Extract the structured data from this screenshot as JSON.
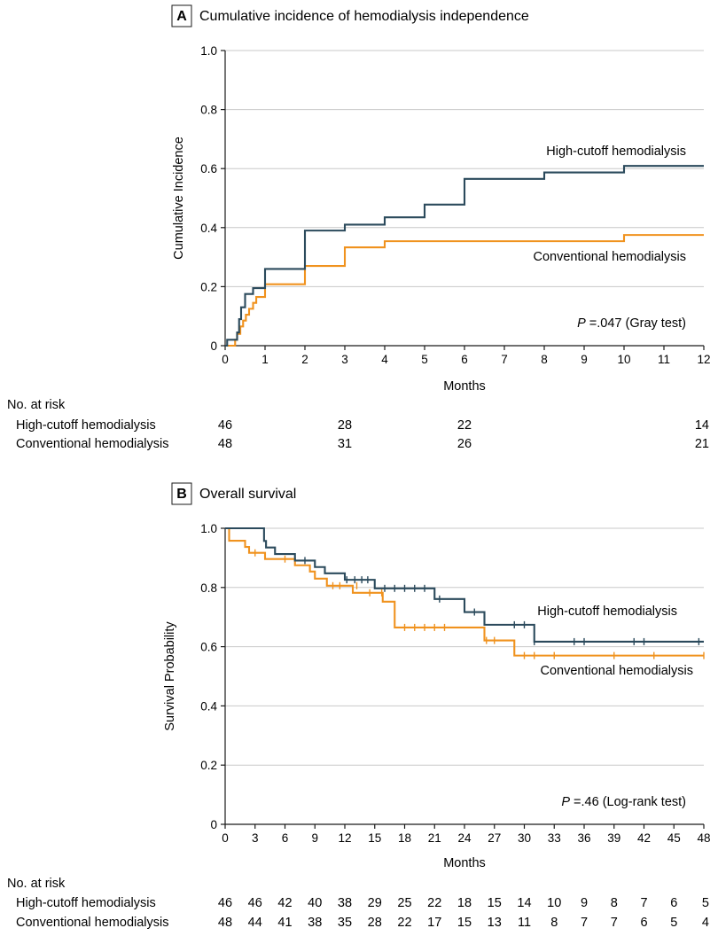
{
  "chart_data": [
    {
      "type": "step-line",
      "panel_letter": "A",
      "title": "Cumulative incidence of hemodialysis independence",
      "ylabel": "Cumulative Incidence",
      "xlabel": "Months",
      "xlim": [
        0,
        12
      ],
      "ylim": [
        0,
        1
      ],
      "x_ticks": [
        0,
        1,
        2,
        3,
        4,
        5,
        6,
        7,
        8,
        9,
        10,
        11,
        12
      ],
      "x_tick_labels": [
        "0",
        "1",
        "2",
        "3",
        "4",
        "5",
        "6",
        "7",
        "8",
        "9",
        "10",
        "11",
        "12"
      ],
      "y_ticks": [
        0,
        0.2,
        0.4,
        0.6,
        0.8,
        1.0
      ],
      "y_tick_labels": [
        "0",
        "0.2",
        "0.4",
        "0.6",
        "0.8",
        "1.0"
      ],
      "grid": true,
      "annotation": {
        "italic": "P",
        "text": " =.047 (Gray test)"
      },
      "series": [
        {
          "name": "High-cutoff hemodialysis",
          "color": "#2b4a5c",
          "steps": [
            [
              0,
              0
            ],
            [
              0.05,
              0.02
            ],
            [
              0.3,
              0.045
            ],
            [
              0.35,
              0.09
            ],
            [
              0.4,
              0.13
            ],
            [
              0.5,
              0.175
            ],
            [
              0.7,
              0.195
            ],
            [
              1,
              0.26
            ],
            [
              2,
              0.39
            ],
            [
              3,
              0.41
            ],
            [
              4,
              0.435
            ],
            [
              5,
              0.478
            ],
            [
              6,
              0.565
            ],
            [
              8,
              0.587
            ],
            [
              10,
              0.609
            ],
            [
              12,
              0.609
            ]
          ],
          "censor": []
        },
        {
          "name": "Conventional hemodialysis",
          "color": "#f0921e",
          "steps": [
            [
              0,
              0
            ],
            [
              0.25,
              0.02
            ],
            [
              0.3,
              0.04
            ],
            [
              0.38,
              0.065
            ],
            [
              0.45,
              0.085
            ],
            [
              0.52,
              0.105
            ],
            [
              0.6,
              0.125
            ],
            [
              0.7,
              0.145
            ],
            [
              0.78,
              0.165
            ],
            [
              1,
              0.208
            ],
            [
              2,
              0.27
            ],
            [
              3,
              0.333
            ],
            [
              4,
              0.354
            ],
            [
              10,
              0.375
            ],
            [
              12,
              0.375
            ]
          ],
          "censor": []
        }
      ],
      "risk_table": {
        "header": "No. at risk",
        "x": [
          0,
          3,
          6,
          12
        ],
        "rows": [
          {
            "label": "High-cutoff hemodialysis",
            "values": [
              "46",
              "28",
              "22",
              "14"
            ]
          },
          {
            "label": "Conventional hemodialysis",
            "values": [
              "48",
              "31",
              "26",
              "21"
            ]
          }
        ]
      }
    },
    {
      "type": "step-line",
      "panel_letter": "B",
      "title": "Overall survival",
      "ylabel": "Survival Probability",
      "xlabel": "Months",
      "xlim": [
        0,
        48
      ],
      "ylim": [
        0,
        1
      ],
      "x_ticks": [
        0,
        3,
        6,
        9,
        12,
        15,
        18,
        21,
        24,
        27,
        30,
        33,
        36,
        39,
        42,
        45,
        48
      ],
      "x_tick_labels": [
        "0",
        "3",
        "6",
        "9",
        "12",
        "15",
        "18",
        "21",
        "24",
        "27",
        "30",
        "33",
        "36",
        "39",
        "42",
        "45",
        "48"
      ],
      "y_ticks": [
        0,
        0.2,
        0.4,
        0.6,
        0.8,
        1.0
      ],
      "y_tick_labels": [
        "0",
        "0.2",
        "0.4",
        "0.6",
        "0.8",
        "1.0"
      ],
      "grid": true,
      "annotation": {
        "italic": "P",
        "text": " =.46 (Log-rank test)"
      },
      "series": [
        {
          "name": "High-cutoff hemodialysis",
          "color": "#2b4a5c",
          "steps": [
            [
              0,
              1.0
            ],
            [
              3.9,
              0.957
            ],
            [
              4.1,
              0.935
            ],
            [
              5,
              0.913
            ],
            [
              7,
              0.891
            ],
            [
              9,
              0.869
            ],
            [
              10,
              0.848
            ],
            [
              12,
              0.826
            ],
            [
              15,
              0.797
            ],
            [
              21,
              0.761
            ],
            [
              24,
              0.717
            ],
            [
              26,
              0.674
            ],
            [
              31,
              0.617
            ],
            [
              48,
              0.617
            ]
          ],
          "censor": [
            [
              8,
              0.891
            ],
            [
              12.2,
              0.826
            ],
            [
              13,
              0.826
            ],
            [
              13.7,
              0.826
            ],
            [
              14.3,
              0.826
            ],
            [
              16,
              0.797
            ],
            [
              17,
              0.797
            ],
            [
              18,
              0.797
            ],
            [
              19,
              0.797
            ],
            [
              20,
              0.797
            ],
            [
              21.5,
              0.761
            ],
            [
              25,
              0.717
            ],
            [
              29,
              0.674
            ],
            [
              30,
              0.674
            ],
            [
              31,
              0.617
            ],
            [
              35,
              0.617
            ],
            [
              36,
              0.617
            ],
            [
              41,
              0.617
            ],
            [
              42,
              0.617
            ],
            [
              47.5,
              0.617
            ]
          ]
        },
        {
          "name": "Conventional hemodialysis",
          "color": "#f0921e",
          "steps": [
            [
              0,
              1.0
            ],
            [
              0.4,
              0.958
            ],
            [
              2,
              0.937
            ],
            [
              2.4,
              0.917
            ],
            [
              4,
              0.896
            ],
            [
              7,
              0.875
            ],
            [
              8.5,
              0.854
            ],
            [
              9,
              0.83
            ],
            [
              10.2,
              0.806
            ],
            [
              12.8,
              0.782
            ],
            [
              15.8,
              0.752
            ],
            [
              17,
              0.665
            ],
            [
              26,
              0.621
            ],
            [
              29,
              0.57
            ],
            [
              48,
              0.57
            ]
          ],
          "censor": [
            [
              3,
              0.917
            ],
            [
              6,
              0.896
            ],
            [
              10.8,
              0.806
            ],
            [
              11.5,
              0.806
            ],
            [
              13.2,
              0.806
            ],
            [
              14.5,
              0.782
            ],
            [
              15.7,
              0.782
            ],
            [
              18,
              0.665
            ],
            [
              19,
              0.665
            ],
            [
              20,
              0.665
            ],
            [
              21,
              0.665
            ],
            [
              22,
              0.665
            ],
            [
              26.2,
              0.621
            ],
            [
              27,
              0.621
            ],
            [
              30,
              0.57
            ],
            [
              31,
              0.57
            ],
            [
              33,
              0.57
            ],
            [
              39,
              0.57
            ],
            [
              43,
              0.57
            ],
            [
              48,
              0.57
            ]
          ]
        }
      ],
      "risk_table": {
        "header": "No. at risk",
        "x": [
          0,
          3,
          6,
          9,
          12,
          15,
          18,
          21,
          24,
          27,
          30,
          33,
          36,
          39,
          42,
          45,
          48
        ],
        "rows": [
          {
            "label": "High-cutoff hemodialysis",
            "values": [
              "46",
              "46",
              "42",
              "40",
              "38",
              "29",
              "25",
              "22",
              "18",
              "15",
              "14",
              "10",
              "9",
              "8",
              "7",
              "6",
              "5"
            ]
          },
          {
            "label": "Conventional hemodialysis",
            "values": [
              "48",
              "44",
              "41",
              "38",
              "35",
              "28",
              "22",
              "17",
              "15",
              "13",
              "11",
              "8",
              "7",
              "7",
              "6",
              "5",
              "4"
            ]
          }
        ]
      }
    }
  ]
}
